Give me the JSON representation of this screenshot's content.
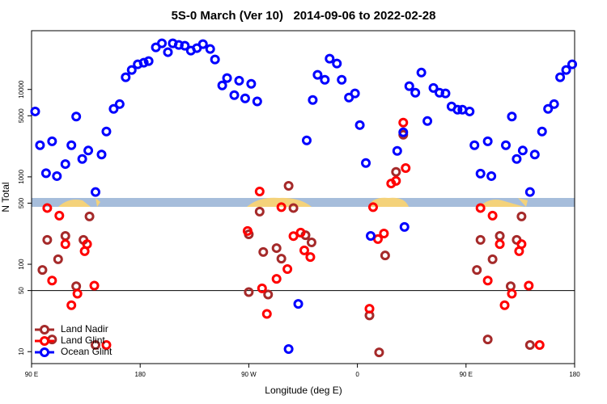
{
  "chart_data": {
    "type": "scatter",
    "title": "5S-0 March (Ver 10)   2014-09-06 to 2022-02-28",
    "xlabel": "Longitude (deg E)",
    "ylabel": "N Total",
    "log_y": true,
    "legend": "lower left",
    "reference_line": 50,
    "xlim": [
      90,
      540
    ],
    "xticks": [
      {
        "value": 90,
        "label": "90 E"
      },
      {
        "value": 180,
        "label": "180"
      },
      {
        "value": 270,
        "label": "90 W"
      },
      {
        "value": 360,
        "label": "0"
      },
      {
        "value": 450,
        "label": "90 E"
      },
      {
        "value": 540,
        "label": "180"
      }
    ],
    "ylim": [
      7.3,
      47000
    ],
    "yticks": [
      10,
      50,
      100,
      500,
      1000,
      5000,
      10000
    ],
    "series": [
      {
        "name": "Land Nadir",
        "color": "#a52a2a",
        "x": [
          99,
          103,
          112,
          118,
          127,
          133,
          138,
          143,
          107,
          270,
          270,
          279,
          282,
          286,
          293,
          297,
          303,
          307,
          317,
          322,
          370,
          378,
          383,
          392,
          398,
          459,
          462,
          472,
          478,
          487,
          492,
          496,
          503,
          468
        ],
        "values": [
          86,
          190,
          114,
          211,
          56,
          190,
          352,
          11.9,
          13.8,
          220,
          48,
          400,
          138,
          45,
          153,
          116,
          790,
          440,
          215,
          178,
          26,
          9.8,
          126,
          1140,
          3030,
          86,
          190,
          114,
          211,
          56,
          190,
          352,
          11.9,
          13.8
        ]
      },
      {
        "name": "Land Glint",
        "color": "#ff0000",
        "x": [
          103,
          113,
          118,
          107,
          123,
          128,
          134,
          136,
          142,
          152,
          279,
          269,
          285,
          281,
          293,
          297,
          302,
          307,
          313,
          316,
          321,
          370,
          373,
          377,
          382,
          388,
          392,
          400,
          398,
          462,
          472,
          478,
          468,
          482,
          488,
          494,
          496,
          502,
          511
        ],
        "values": [
          440,
          360,
          170,
          65,
          34,
          46,
          141,
          170,
          57,
          11.9,
          680,
          240,
          27,
          53,
          68,
          450,
          88,
          210,
          230,
          144,
          121,
          31,
          450,
          194,
          225,
          840,
          900,
          1260,
          4170,
          440,
          360,
          170,
          65,
          34,
          46,
          141,
          170,
          57,
          11.9
        ]
      },
      {
        "name": "Ocean Glint",
        "color": "#0000ff",
        "x": [
          93,
          97,
          102,
          107,
          111,
          118,
          123,
          127,
          132,
          137,
          143,
          148,
          152,
          158,
          163,
          168,
          173,
          178,
          183,
          187,
          193,
          198,
          203,
          207,
          212,
          217,
          222,
          227,
          232,
          238,
          242,
          248,
          252,
          258,
          262,
          267,
          272,
          277,
          303,
          311,
          318,
          323,
          327,
          333,
          337,
          343,
          347,
          353,
          358,
          362,
          367,
          371,
          399,
          393,
          398,
          403,
          408,
          413,
          418,
          423,
          428,
          433,
          438,
          443,
          447,
          453,
          457,
          462,
          468,
          471,
          483,
          488,
          492,
          497,
          503,
          507,
          513,
          518,
          523,
          528,
          533,
          538
        ],
        "values": [
          5600,
          2300,
          1100,
          2550,
          1020,
          1400,
          2300,
          4900,
          1600,
          2000,
          670,
          1800,
          3300,
          6000,
          6800,
          13800,
          16700,
          19400,
          20200,
          21100,
          30300,
          33700,
          26700,
          33700,
          32300,
          31600,
          27800,
          29700,
          33000,
          29000,
          22000,
          11100,
          13500,
          8600,
          12600,
          7900,
          11600,
          7300,
          10.7,
          35.2,
          2610,
          7580,
          14700,
          12900,
          22500,
          19800,
          12900,
          8080,
          9000,
          3910,
          1440,
          211,
          267,
          1980,
          3230,
          10900,
          9180,
          15600,
          4350,
          10400,
          9180,
          9000,
          6390,
          5870,
          5870,
          5600,
          2300,
          1090,
          2550,
          1020,
          2300,
          4900,
          1600,
          2000,
          670,
          1800,
          3300,
          6000,
          6800,
          13800,
          16700,
          19400
        ]
      }
    ]
  }
}
